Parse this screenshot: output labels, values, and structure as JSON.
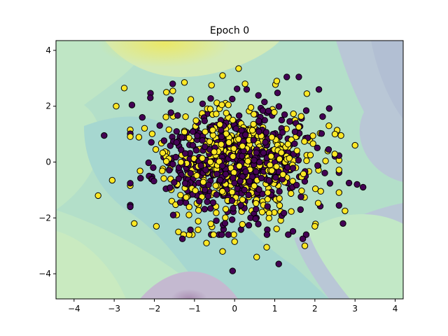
{
  "chart_data": {
    "type": "scatter",
    "title": "Epoch 0",
    "xlabel": "",
    "ylabel": "",
    "xlim": [
      -4.45,
      4.2
    ],
    "ylim": [
      -4.9,
      4.35
    ],
    "x_ticks": [
      -4,
      -3,
      -2,
      -1,
      0,
      1,
      2,
      3,
      4
    ],
    "y_ticks": [
      -4,
      -2,
      0,
      2,
      4
    ],
    "x_tick_labels": [
      "−4",
      "−3",
      "−2",
      "−1",
      "0",
      "1",
      "2",
      "3",
      "4"
    ],
    "y_tick_labels": [
      "−4",
      "−2",
      "0",
      "2",
      "4"
    ],
    "grid": false,
    "legend": "none",
    "background": "filled decision-boundary contours (viridis, semi-transparent)",
    "classes": [
      {
        "label": 0,
        "color": "#440154"
      },
      {
        "label": 1,
        "color": "#fde725"
      }
    ],
    "point_count_estimate": 1000,
    "point_distribution": {
      "x_mean": 0.0,
      "y_mean": 0.0,
      "x_std": 1.0,
      "y_std": 1.0,
      "x_range": [
        -3.4,
        3.2
      ],
      "y_range": [
        -3.9,
        3.35
      ]
    },
    "points": [
      {
        "x": -3.4,
        "y": -1.2,
        "c": 1
      },
      {
        "x": -3.25,
        "y": 0.95,
        "c": 0
      },
      {
        "x": -3.05,
        "y": -0.65,
        "c": 1
      },
      {
        "x": -2.95,
        "y": 2.0,
        "c": 1
      },
      {
        "x": -2.75,
        "y": 2.65,
        "c": 1
      },
      {
        "x": -2.5,
        "y": -2.2,
        "c": 1
      },
      {
        "x": -2.6,
        "y": -1.6,
        "c": 0
      },
      {
        "x": -2.3,
        "y": 1.6,
        "c": 0
      },
      {
        "x": -2.1,
        "y": 2.3,
        "c": 0
      },
      {
        "x": -1.95,
        "y": -2.3,
        "c": 1
      },
      {
        "x": -1.7,
        "y": 2.5,
        "c": 1
      },
      {
        "x": -1.3,
        "y": -2.75,
        "c": 0
      },
      {
        "x": -1.25,
        "y": 2.85,
        "c": 1
      },
      {
        "x": -0.7,
        "y": -2.9,
        "c": 1
      },
      {
        "x": -0.3,
        "y": 3.1,
        "c": 1
      },
      {
        "x": -0.3,
        "y": -3.2,
        "c": 1
      },
      {
        "x": -0.05,
        "y": -3.9,
        "c": 0
      },
      {
        "x": 0.1,
        "y": 3.35,
        "c": 1
      },
      {
        "x": 0.3,
        "y": 2.6,
        "c": 0
      },
      {
        "x": 0.55,
        "y": -3.4,
        "c": 1
      },
      {
        "x": 0.8,
        "y": -3.05,
        "c": 1
      },
      {
        "x": 1.1,
        "y": -3.65,
        "c": 0
      },
      {
        "x": 1.05,
        "y": 2.9,
        "c": 1
      },
      {
        "x": 1.3,
        "y": 3.05,
        "c": 0
      },
      {
        "x": 1.6,
        "y": 3.05,
        "c": 0
      },
      {
        "x": 1.8,
        "y": 2.45,
        "c": 1
      },
      {
        "x": 1.7,
        "y": -2.75,
        "c": 0
      },
      {
        "x": 1.75,
        "y": -3.0,
        "c": 1
      },
      {
        "x": 2.1,
        "y": 2.6,
        "c": 0
      },
      {
        "x": 2.35,
        "y": 1.3,
        "c": 1
      },
      {
        "x": 2.5,
        "y": 1.0,
        "c": 1
      },
      {
        "x": 2.65,
        "y": 0.95,
        "c": 1
      },
      {
        "x": 2.6,
        "y": -1.55,
        "c": 0
      },
      {
        "x": 2.75,
        "y": -1.75,
        "c": 1
      },
      {
        "x": 2.7,
        "y": -2.2,
        "c": 0
      },
      {
        "x": 2.85,
        "y": -0.75,
        "c": 0
      },
      {
        "x": 3.0,
        "y": 0.6,
        "c": 1
      },
      {
        "x": 3.05,
        "y": -0.8,
        "c": 0
      },
      {
        "x": 3.2,
        "y": -0.9,
        "c": 0
      },
      {
        "x": 2.0,
        "y": -2.3,
        "c": 1
      },
      {
        "x": -1.4,
        "y": -2.5,
        "c": 1
      },
      {
        "x": 0.0,
        "y": -2.85,
        "c": 1
      }
    ]
  }
}
